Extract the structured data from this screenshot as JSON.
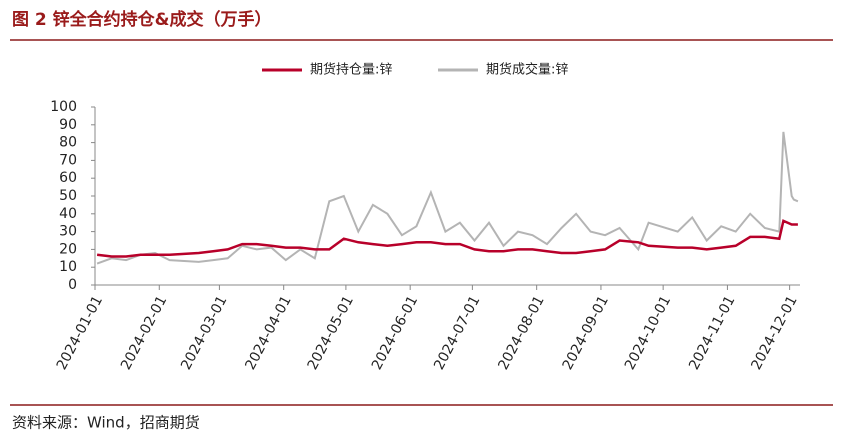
{
  "chart_data": {
    "type": "line",
    "title": "图 2  锌全合约持仓&成交（万手）",
    "source": "资料来源：Wind，招商期货",
    "x": [
      "2024-01-02",
      "2024-01-09",
      "2024-01-16",
      "2024-01-23",
      "2024-01-30",
      "2024-02-06",
      "2024-02-20",
      "2024-02-27",
      "2024-03-05",
      "2024-03-12",
      "2024-03-19",
      "2024-03-26",
      "2024-04-02",
      "2024-04-09",
      "2024-04-16",
      "2024-04-23",
      "2024-04-30",
      "2024-05-07",
      "2024-05-14",
      "2024-05-21",
      "2024-05-28",
      "2024-06-04",
      "2024-06-11",
      "2024-06-18",
      "2024-06-25",
      "2024-07-02",
      "2024-07-09",
      "2024-07-16",
      "2024-07-23",
      "2024-07-30",
      "2024-08-06",
      "2024-08-13",
      "2024-08-20",
      "2024-08-27",
      "2024-09-03",
      "2024-09-10",
      "2024-09-19",
      "2024-09-24",
      "2024-10-08",
      "2024-10-15",
      "2024-10-22",
      "2024-10-29",
      "2024-11-05",
      "2024-11-12",
      "2024-11-19",
      "2024-11-26",
      "2024-11-28",
      "2024-12-02",
      "2024-12-03",
      "2024-12-05"
    ],
    "series": [
      {
        "name": "期货持仓量:锌",
        "color": "#b8002a",
        "values": [
          17,
          16,
          16,
          17,
          17,
          17,
          18,
          19,
          20,
          23,
          23,
          22,
          21,
          21,
          20,
          20,
          26,
          24,
          23,
          22,
          23,
          24,
          24,
          23,
          23,
          20,
          19,
          19,
          20,
          20,
          19,
          18,
          18,
          19,
          20,
          25,
          24,
          22,
          21,
          21,
          20,
          21,
          22,
          27,
          27,
          26,
          36,
          34,
          34,
          34
        ]
      },
      {
        "name": "期货成交量:锌",
        "color": "#b4b4b4",
        "values": [
          12,
          15,
          14,
          17,
          18,
          14,
          13,
          14,
          15,
          22,
          20,
          21,
          14,
          20,
          15,
          47,
          50,
          30,
          45,
          40,
          28,
          33,
          52,
          30,
          35,
          25,
          35,
          22,
          30,
          28,
          23,
          32,
          40,
          30,
          28,
          32,
          20,
          35,
          30,
          38,
          25,
          33,
          30,
          40,
          32,
          30,
          86,
          50,
          48,
          47
        ]
      }
    ],
    "xlim": [
      "2024-01-01",
      "2024-12-06"
    ],
    "xticks": [
      "2024-01-01",
      "2024-02-01",
      "2024-03-01",
      "2024-04-01",
      "2024-05-01",
      "2024-06-01",
      "2024-07-01",
      "2024-08-01",
      "2024-09-01",
      "2024-10-01",
      "2024-11-01",
      "2024-12-01"
    ],
    "ylim": [
      0,
      100
    ],
    "yticks": [
      0,
      10,
      20,
      30,
      40,
      50,
      60,
      70,
      80,
      90,
      100
    ],
    "legend": "top"
  }
}
